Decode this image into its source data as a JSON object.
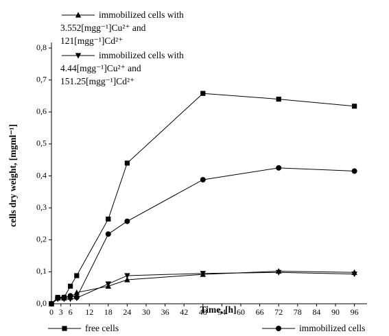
{
  "chart_data": {
    "type": "line",
    "xlabel": "Time, [h]",
    "ylabel": "cells dry weight, [mgml⁻¹]",
    "x": [
      0,
      2,
      4,
      6,
      8,
      18,
      24,
      48,
      72,
      96
    ],
    "series": [
      {
        "name": "free cells",
        "color": "#000000",
        "marker": "square",
        "values": [
          0,
          0.02,
          0.02,
          0.055,
          0.088,
          0.265,
          0.44,
          0.658,
          0.64,
          0.618
        ]
      },
      {
        "name": "immobilized cells",
        "color": "#000000",
        "marker": "circle",
        "values": [
          0,
          0.018,
          0.02,
          0.025,
          0.02,
          0.218,
          0.258,
          0.388,
          0.425,
          0.415
        ]
      },
      {
        "name": "immobilized cells with 3.552[mgg⁻¹]Cu²⁺ and 121[mgg⁻¹]Cd²⁺",
        "color": "#000000",
        "marker": "triangle-up",
        "values": [
          0,
          0.018,
          0.018,
          0.02,
          0.035,
          0.055,
          0.075,
          0.092,
          0.102,
          0.098
        ]
      },
      {
        "name": "immobilized cells with 4.44[mgg⁻¹]Cu²⁺ and 151.25[mgg⁻¹]Cd²⁺",
        "color": "#000000",
        "marker": "triangle-down",
        "values": [
          0,
          0.015,
          0.015,
          0.015,
          0.018,
          0.062,
          0.088,
          0.095,
          0.098,
          0.093
        ]
      }
    ],
    "xlim": [
      0,
      100
    ],
    "ylim": [
      0,
      0.8
    ],
    "xticks": [
      0,
      3,
      6,
      12,
      18,
      24,
      30,
      36,
      42,
      48,
      54,
      60,
      66,
      72,
      78,
      84,
      90,
      96
    ],
    "yticks": [
      {
        "value": 0,
        "label": "0,0"
      },
      {
        "value": 0.1,
        "label": "0,1"
      },
      {
        "value": 0.2,
        "label": "0,2"
      },
      {
        "value": 0.3,
        "label": "0,3"
      },
      {
        "value": 0.4,
        "label": "0,4"
      },
      {
        "value": 0.5,
        "label": "0,5"
      },
      {
        "value": 0.6,
        "label": "0,6"
      },
      {
        "value": 0.7,
        "label": "0,7"
      },
      {
        "value": 0.8,
        "label": "0,8"
      }
    ],
    "grid": false
  }
}
